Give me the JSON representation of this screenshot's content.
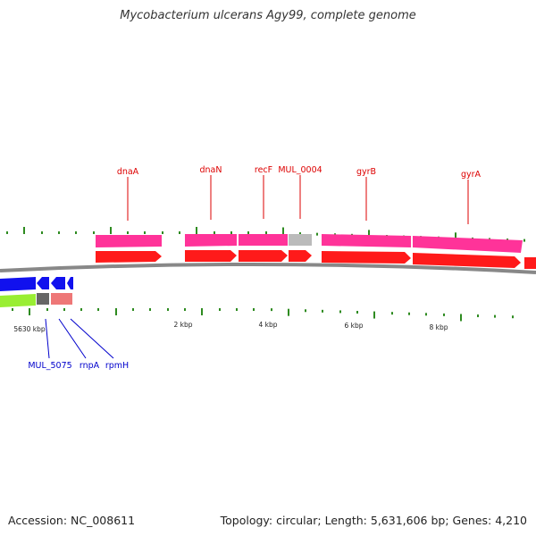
{
  "title": "Mycobacterium ulcerans Agy99, complete genome",
  "footer": {
    "accession": "Accession: NC_008611",
    "summary": "Topology: circular; Length: 5,631,606 bp; Genes: 4,210"
  },
  "colors": {
    "background": "#ffffff",
    "backbone": "#888888",
    "tick": "#2e8b20",
    "gene_label_top": "#dd0000",
    "gene_label_bottom": "#0000cc",
    "cds_forward": "#ff1a1a",
    "gene_forward": "#ff3399",
    "gene_forward_grey": "#bbbbbb",
    "cds_reverse": "#1111ee",
    "gene_reverse": "#99ee33",
    "gene_reverse_dark": "#666666",
    "rna_reverse": "#ee7777"
  },
  "scale_labels": [
    "5630 kbp",
    "2 kbp",
    "4 kbp",
    "6 kbp",
    "8 kbp"
  ],
  "genes_top": [
    "dnaA",
    "dnaN",
    "recF",
    "MUL_0004",
    "gyrB",
    "gyrA"
  ],
  "genes_bottom": [
    "MUL_5075",
    "rnpA",
    "rpmH"
  ]
}
